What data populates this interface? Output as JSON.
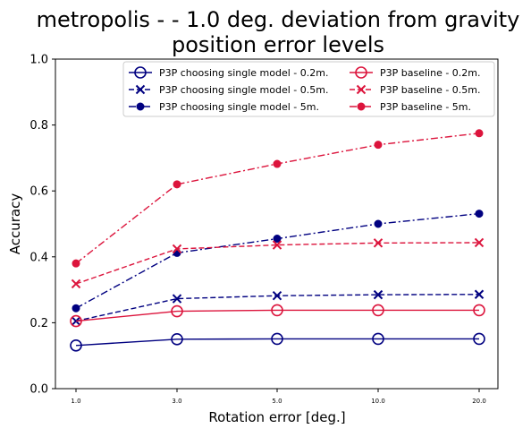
{
  "chart_data": {
    "type": "line",
    "title_line1": "metropolis -  - 1.0 deg. deviation from gravity",
    "title_line2": "position error levels",
    "xlabel": "Rotation error [deg.]",
    "ylabel": "Accuracy",
    "categories": [
      "1.0",
      "3.0",
      "5.0",
      "10.0",
      "20.0"
    ],
    "ylim": [
      0,
      1.0
    ],
    "yticks": [
      "0.0",
      "0.2",
      "0.4",
      "0.6",
      "0.8",
      "1.0"
    ],
    "grid": false,
    "legend_position": "top-right",
    "series": [
      {
        "name": "P3P choosing single model - 0.2m.",
        "color": "#000080",
        "linestyle": "solid",
        "marker": "circle-open",
        "values": [
          0.131,
          0.15,
          0.151,
          0.151,
          0.151
        ]
      },
      {
        "name": "P3P choosing single model - 0.5m.",
        "color": "#000080",
        "linestyle": "dashed",
        "marker": "x",
        "values": [
          0.205,
          0.273,
          0.282,
          0.285,
          0.286
        ]
      },
      {
        "name": "P3P choosing single model - 5m.",
        "color": "#000080",
        "linestyle": "dashdot",
        "marker": "dot",
        "values": [
          0.244,
          0.412,
          0.455,
          0.5,
          0.531
        ]
      },
      {
        "name": "P3P baseline - 0.2m.",
        "color": "#dc143c",
        "linestyle": "solid",
        "marker": "circle-open",
        "values": [
          0.205,
          0.235,
          0.238,
          0.238,
          0.238
        ]
      },
      {
        "name": "P3P baseline - 0.5m.",
        "color": "#dc143c",
        "linestyle": "dashed",
        "marker": "x",
        "values": [
          0.318,
          0.424,
          0.436,
          0.442,
          0.443
        ]
      },
      {
        "name": "P3P baseline - 5m.",
        "color": "#dc143c",
        "linestyle": "dashdot",
        "marker": "dot",
        "values": [
          0.38,
          0.62,
          0.682,
          0.74,
          0.775
        ]
      }
    ]
  }
}
